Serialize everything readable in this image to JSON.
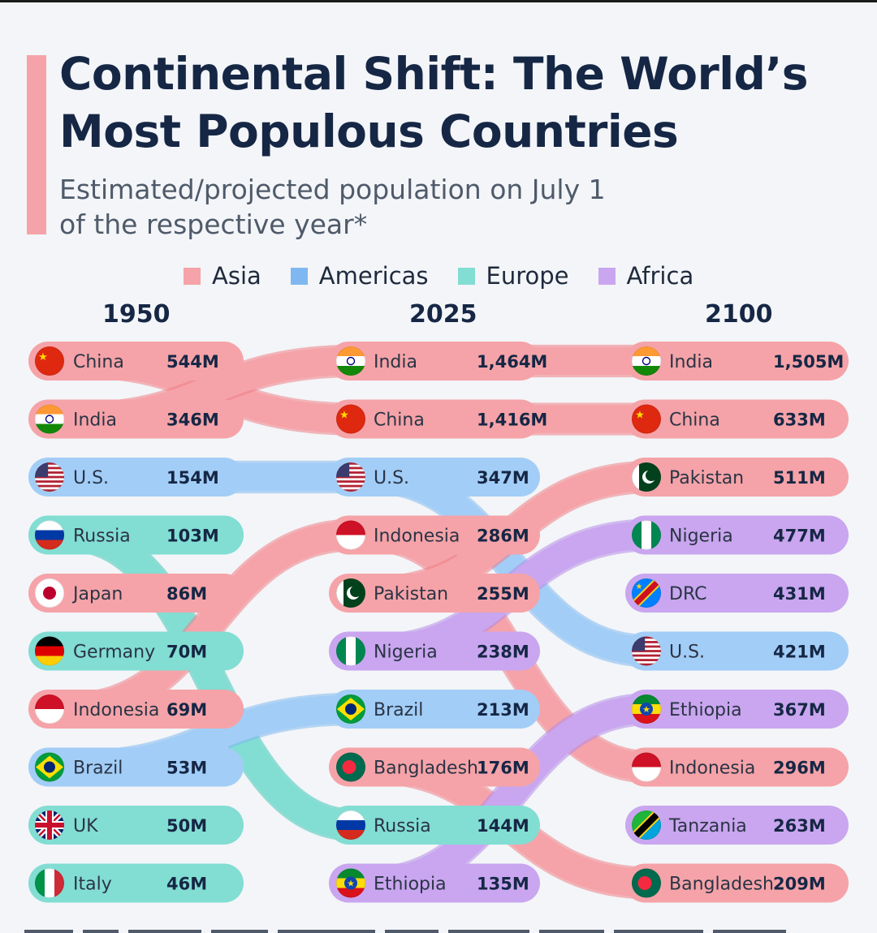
{
  "title": "Continental Shift: The World’s Most Populous Countries",
  "subtitle": "Estimated/projected population on July 1 of the respective year*",
  "colors": {
    "Asia": "#f5a3a8",
    "Americas": "#a2cdf7",
    "Europe": "#82ddd3",
    "Africa": "#c9a6ef",
    "title_text": "#162745",
    "background": "#f3f5f8"
  },
  "chart_data": {
    "type": "bump",
    "title": "Continental Shift: The World’s Most Populous Countries",
    "subtitle": "Estimated/projected population on July 1 of the respective year*",
    "legend": [
      "Asia",
      "Americas",
      "Europe",
      "Africa"
    ],
    "legend_position": "top",
    "years": [
      "1950",
      "2025",
      "2100"
    ],
    "columns": [
      {
        "year": "1950",
        "entries": [
          {
            "country": "China",
            "region": "Asia",
            "label": "544M",
            "value": 544,
            "flag": "china-flag"
          },
          {
            "country": "India",
            "region": "Asia",
            "label": "346M",
            "value": 346,
            "flag": "india-flag"
          },
          {
            "country": "U.S.",
            "region": "Americas",
            "label": "154M",
            "value": 154,
            "flag": "us-flag"
          },
          {
            "country": "Russia",
            "region": "Europe",
            "label": "103M",
            "value": 103,
            "flag": "russia-flag"
          },
          {
            "country": "Japan",
            "region": "Asia",
            "label": "86M",
            "value": 86,
            "flag": "japan-flag"
          },
          {
            "country": "Germany",
            "region": "Europe",
            "label": "70M",
            "value": 70,
            "flag": "germany-flag"
          },
          {
            "country": "Indonesia",
            "region": "Asia",
            "label": "69M",
            "value": 69,
            "flag": "indonesia-flag"
          },
          {
            "country": "Brazil",
            "region": "Americas",
            "label": "53M",
            "value": 53,
            "flag": "brazil-flag"
          },
          {
            "country": "UK",
            "region": "Europe",
            "label": "50M",
            "value": 50,
            "flag": "uk-flag"
          },
          {
            "country": "Italy",
            "region": "Europe",
            "label": "46M",
            "value": 46,
            "flag": "italy-flag"
          }
        ]
      },
      {
        "year": "2025",
        "entries": [
          {
            "country": "India",
            "region": "Asia",
            "label": "1,464M",
            "value": 1464,
            "flag": "india-flag"
          },
          {
            "country": "China",
            "region": "Asia",
            "label": "1,416M",
            "value": 1416,
            "flag": "china-flag"
          },
          {
            "country": "U.S.",
            "region": "Americas",
            "label": "347M",
            "value": 347,
            "flag": "us-flag"
          },
          {
            "country": "Indonesia",
            "region": "Asia",
            "label": "286M",
            "value": 286,
            "flag": "indonesia-flag"
          },
          {
            "country": "Pakistan",
            "region": "Asia",
            "label": "255M",
            "value": 255,
            "flag": "pakistan-flag"
          },
          {
            "country": "Nigeria",
            "region": "Africa",
            "label": "238M",
            "value": 238,
            "flag": "nigeria-flag"
          },
          {
            "country": "Brazil",
            "region": "Americas",
            "label": "213M",
            "value": 213,
            "flag": "brazil-flag"
          },
          {
            "country": "Bangladesh",
            "region": "Asia",
            "label": "176M",
            "value": 176,
            "flag": "bangladesh-flag"
          },
          {
            "country": "Russia",
            "region": "Europe",
            "label": "144M",
            "value": 144,
            "flag": "russia-flag"
          },
          {
            "country": "Ethiopia",
            "region": "Africa",
            "label": "135M",
            "value": 135,
            "flag": "ethiopia-flag"
          }
        ]
      },
      {
        "year": "2100",
        "entries": [
          {
            "country": "India",
            "region": "Asia",
            "label": "1,505M",
            "value": 1505,
            "flag": "india-flag"
          },
          {
            "country": "China",
            "region": "Asia",
            "label": "633M",
            "value": 633,
            "flag": "china-flag"
          },
          {
            "country": "Pakistan",
            "region": "Asia",
            "label": "511M",
            "value": 511,
            "flag": "pakistan-flag"
          },
          {
            "country": "Nigeria",
            "region": "Africa",
            "label": "477M",
            "value": 477,
            "flag": "nigeria-flag"
          },
          {
            "country": "DRC",
            "region": "Africa",
            "label": "431M",
            "value": 431,
            "flag": "drc-flag"
          },
          {
            "country": "U.S.",
            "region": "Americas",
            "label": "421M",
            "value": 421,
            "flag": "us-flag"
          },
          {
            "country": "Ethiopia",
            "region": "Africa",
            "label": "367M",
            "value": 367,
            "flag": "ethiopia-flag"
          },
          {
            "country": "Indonesia",
            "region": "Asia",
            "label": "296M",
            "value": 296,
            "flag": "indonesia-flag"
          },
          {
            "country": "Tanzania",
            "region": "Africa",
            "label": "263M",
            "value": 263,
            "flag": "tanzania-flag"
          },
          {
            "country": "Bangladesh",
            "region": "Asia",
            "label": "209M",
            "value": 209,
            "flag": "bangladesh-flag"
          }
        ]
      }
    ]
  }
}
